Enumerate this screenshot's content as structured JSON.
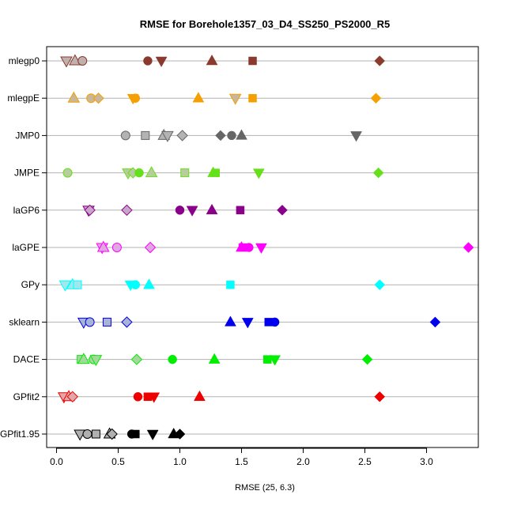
{
  "chart_data": {
    "type": "scatter",
    "title": "RMSE for Borehole1357_03_D4_SS250_PS2000_R5",
    "xlabel": "RMSE (25, 6.3)",
    "ylabel": "",
    "xlim": [
      -0.08,
      3.42
    ],
    "xticks": [
      0.0,
      0.5,
      1.0,
      1.5,
      2.0,
      2.5,
      3.0
    ],
    "xtick_labels": [
      "0.0",
      "0.5",
      "1.0",
      "1.5",
      "2.0",
      "2.5",
      "3.0"
    ],
    "grid": "horizontal",
    "categories": [
      "mlegp0",
      "mlegpE",
      "JMP0",
      "JMPE",
      "laGP6",
      "laGPE",
      "GPy",
      "sklearn",
      "DACE",
      "GPfit2",
      "GPfit1.95"
    ],
    "series": [
      {
        "category": "mlegp0",
        "color": "#8B3A2F",
        "light": "#C0B0AE",
        "points": [
          {
            "x": 0.08,
            "shape": "tri-down",
            "light": true
          },
          {
            "x": 0.15,
            "shape": "tri-up",
            "light": true
          },
          {
            "x": 0.21,
            "shape": "circle",
            "light": true
          },
          {
            "x": 0.74,
            "shape": "circle"
          },
          {
            "x": 0.85,
            "shape": "tri-down"
          },
          {
            "x": 1.26,
            "shape": "tri-up"
          },
          {
            "x": 1.59,
            "shape": "square"
          },
          {
            "x": 2.62,
            "shape": "diamond"
          }
        ]
      },
      {
        "category": "mlegpE",
        "color": "#F5A000",
        "light": "#C9B79A",
        "points": [
          {
            "x": 0.14,
            "shape": "tri-up",
            "light": true
          },
          {
            "x": 0.28,
            "shape": "circle",
            "light": true
          },
          {
            "x": 0.34,
            "shape": "diamond",
            "light": true
          },
          {
            "x": 0.62,
            "shape": "tri-down"
          },
          {
            "x": 0.64,
            "shape": "circle"
          },
          {
            "x": 1.15,
            "shape": "tri-up"
          },
          {
            "x": 1.45,
            "shape": "tri-down",
            "light": true
          },
          {
            "x": 1.59,
            "shape": "square"
          },
          {
            "x": 2.59,
            "shape": "diamond"
          }
        ]
      },
      {
        "category": "JMP0",
        "color": "#666666",
        "light": "#B3B3B3",
        "points": [
          {
            "x": 0.56,
            "shape": "circle",
            "light": true
          },
          {
            "x": 0.72,
            "shape": "square",
            "light": true
          },
          {
            "x": 0.87,
            "shape": "tri-up",
            "light": true
          },
          {
            "x": 0.9,
            "shape": "tri-down",
            "light": true
          },
          {
            "x": 1.02,
            "shape": "diamond",
            "light": true
          },
          {
            "x": 1.33,
            "shape": "diamond"
          },
          {
            "x": 1.42,
            "shape": "circle"
          },
          {
            "x": 1.5,
            "shape": "tri-up"
          },
          {
            "x": 2.43,
            "shape": "tri-down"
          }
        ]
      },
      {
        "category": "JMPE",
        "color": "#66E01A",
        "light": "#B9CC9E",
        "points": [
          {
            "x": 0.09,
            "shape": "circle",
            "light": true
          },
          {
            "x": 0.58,
            "shape": "tri-down",
            "light": true
          },
          {
            "x": 0.62,
            "shape": "diamond",
            "light": true
          },
          {
            "x": 0.67,
            "shape": "circle"
          },
          {
            "x": 0.77,
            "shape": "tri-up",
            "light": true
          },
          {
            "x": 1.04,
            "shape": "square",
            "light": true
          },
          {
            "x": 1.27,
            "shape": "tri-up"
          },
          {
            "x": 1.29,
            "shape": "square"
          },
          {
            "x": 1.64,
            "shape": "tri-down"
          },
          {
            "x": 2.61,
            "shape": "diamond"
          }
        ]
      },
      {
        "category": "laGP6",
        "color": "#8B008B",
        "light": "#C8A6C8",
        "points": [
          {
            "x": 0.26,
            "shape": "tri-down",
            "light": true
          },
          {
            "x": 0.27,
            "shape": "diamond",
            "light": true
          },
          {
            "x": 0.57,
            "shape": "diamond",
            "light": true
          },
          {
            "x": 1.0,
            "shape": "circle"
          },
          {
            "x": 1.1,
            "shape": "tri-down"
          },
          {
            "x": 1.26,
            "shape": "tri-up"
          },
          {
            "x": 1.49,
            "shape": "square"
          },
          {
            "x": 1.83,
            "shape": "diamond"
          }
        ]
      },
      {
        "category": "laGPE",
        "color": "#FF00FF",
        "light": "#E0A8E0",
        "points": [
          {
            "x": 0.37,
            "shape": "tri-down",
            "light": true
          },
          {
            "x": 0.38,
            "shape": "tri-up",
            "light": true
          },
          {
            "x": 0.49,
            "shape": "circle",
            "light": true
          },
          {
            "x": 0.76,
            "shape": "diamond",
            "light": true
          },
          {
            "x": 1.5,
            "shape": "tri-up"
          },
          {
            "x": 1.51,
            "shape": "square"
          },
          {
            "x": 1.56,
            "shape": "circle"
          },
          {
            "x": 1.66,
            "shape": "tri-down"
          },
          {
            "x": 3.34,
            "shape": "diamond"
          }
        ]
      },
      {
        "category": "GPy",
        "color": "#00FFFF",
        "light": "#9EE8EE",
        "points": [
          {
            "x": 0.07,
            "shape": "tri-down",
            "light": true
          },
          {
            "x": 0.13,
            "shape": "tri-up",
            "light": true
          },
          {
            "x": 0.17,
            "shape": "square",
            "light": true
          },
          {
            "x": 0.6,
            "shape": "tri-down"
          },
          {
            "x": 0.64,
            "shape": "circle"
          },
          {
            "x": 0.75,
            "shape": "tri-up"
          },
          {
            "x": 1.41,
            "shape": "square"
          },
          {
            "x": 2.62,
            "shape": "diamond"
          }
        ]
      },
      {
        "category": "sklearn",
        "color": "#0000EE",
        "light": "#A7B4D6",
        "points": [
          {
            "x": 0.22,
            "shape": "tri-down",
            "light": true
          },
          {
            "x": 0.27,
            "shape": "circle",
            "light": true
          },
          {
            "x": 0.41,
            "shape": "square",
            "light": true
          },
          {
            "x": 0.57,
            "shape": "diamond",
            "light": true
          },
          {
            "x": 1.41,
            "shape": "tri-up"
          },
          {
            "x": 1.55,
            "shape": "tri-down"
          },
          {
            "x": 1.72,
            "shape": "square"
          },
          {
            "x": 1.77,
            "shape": "circle"
          },
          {
            "x": 3.07,
            "shape": "diamond"
          }
        ]
      },
      {
        "category": "DACE",
        "color": "#00EE00",
        "light": "#A6D89E",
        "points": [
          {
            "x": 0.2,
            "shape": "square",
            "light": true
          },
          {
            "x": 0.22,
            "shape": "tri-up",
            "light": true
          },
          {
            "x": 0.3,
            "shape": "circle",
            "light": true
          },
          {
            "x": 0.32,
            "shape": "tri-down",
            "light": true
          },
          {
            "x": 0.65,
            "shape": "diamond",
            "light": true
          },
          {
            "x": 0.94,
            "shape": "circle"
          },
          {
            "x": 1.28,
            "shape": "tri-up"
          },
          {
            "x": 1.71,
            "shape": "square"
          },
          {
            "x": 1.77,
            "shape": "tri-down"
          },
          {
            "x": 2.52,
            "shape": "diamond"
          }
        ]
      },
      {
        "category": "GPfit2",
        "color": "#EE0000",
        "light": "#E0A8A8",
        "points": [
          {
            "x": 0.06,
            "shape": "tri-down",
            "light": true
          },
          {
            "x": 0.1,
            "shape": "tri-up",
            "light": true
          },
          {
            "x": 0.13,
            "shape": "diamond",
            "light": true
          },
          {
            "x": 0.66,
            "shape": "circle"
          },
          {
            "x": 0.74,
            "shape": "square"
          },
          {
            "x": 0.79,
            "shape": "tri-down"
          },
          {
            "x": 1.16,
            "shape": "tri-up"
          },
          {
            "x": 2.62,
            "shape": "diamond"
          }
        ]
      },
      {
        "category": "GPfit1.95",
        "color": "#000000",
        "light": "#B0B0B0",
        "points": [
          {
            "x": 0.19,
            "shape": "tri-down",
            "light": true
          },
          {
            "x": 0.25,
            "shape": "circle",
            "light": true
          },
          {
            "x": 0.32,
            "shape": "square",
            "light": true
          },
          {
            "x": 0.43,
            "shape": "tri-up",
            "light": true
          },
          {
            "x": 0.45,
            "shape": "diamond",
            "light": true
          },
          {
            "x": 0.61,
            "shape": "circle"
          },
          {
            "x": 0.64,
            "shape": "square"
          },
          {
            "x": 0.78,
            "shape": "tri-down"
          },
          {
            "x": 0.95,
            "shape": "tri-up"
          },
          {
            "x": 1.0,
            "shape": "diamond"
          }
        ]
      }
    ]
  }
}
